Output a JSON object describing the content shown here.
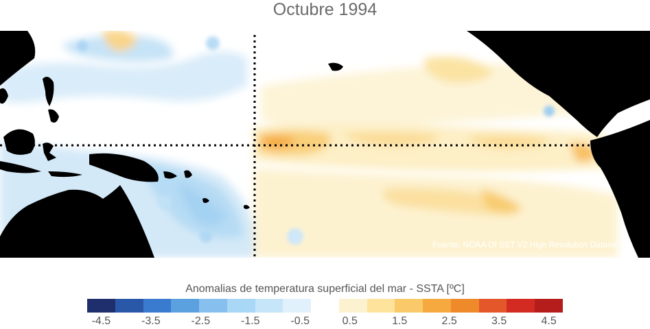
{
  "title": "Octubre 1994",
  "source": "Fuente: NOAA OI SST V2 High Resolution Dataset",
  "colorbar": {
    "title": "Anomalias de temperatura superficial del mar - SSTA  [ºC]",
    "colors": [
      "#1f2f6d",
      "#2a58a8",
      "#3a7bd0",
      "#5ba1e0",
      "#87c0ee",
      "#a9d7f6",
      "#c6e5f8",
      "#e0f1fb",
      "#ffffff",
      "#fdf2cf",
      "#fde39b",
      "#f9c96a",
      "#f5a93f",
      "#ef8a2a",
      "#e4572b",
      "#d32b22",
      "#b51d1d"
    ],
    "ticks": [
      "-4.5",
      "-3.5",
      "-2.5",
      "-1.5",
      "-0.5",
      "0.5",
      "1.5",
      "2.5",
      "3.5",
      "4.5"
    ]
  },
  "map": {
    "region": "Pacífico tropical",
    "reference_lines": [
      "equator-dotted-line",
      "dateline-dotted-line"
    ]
  }
}
